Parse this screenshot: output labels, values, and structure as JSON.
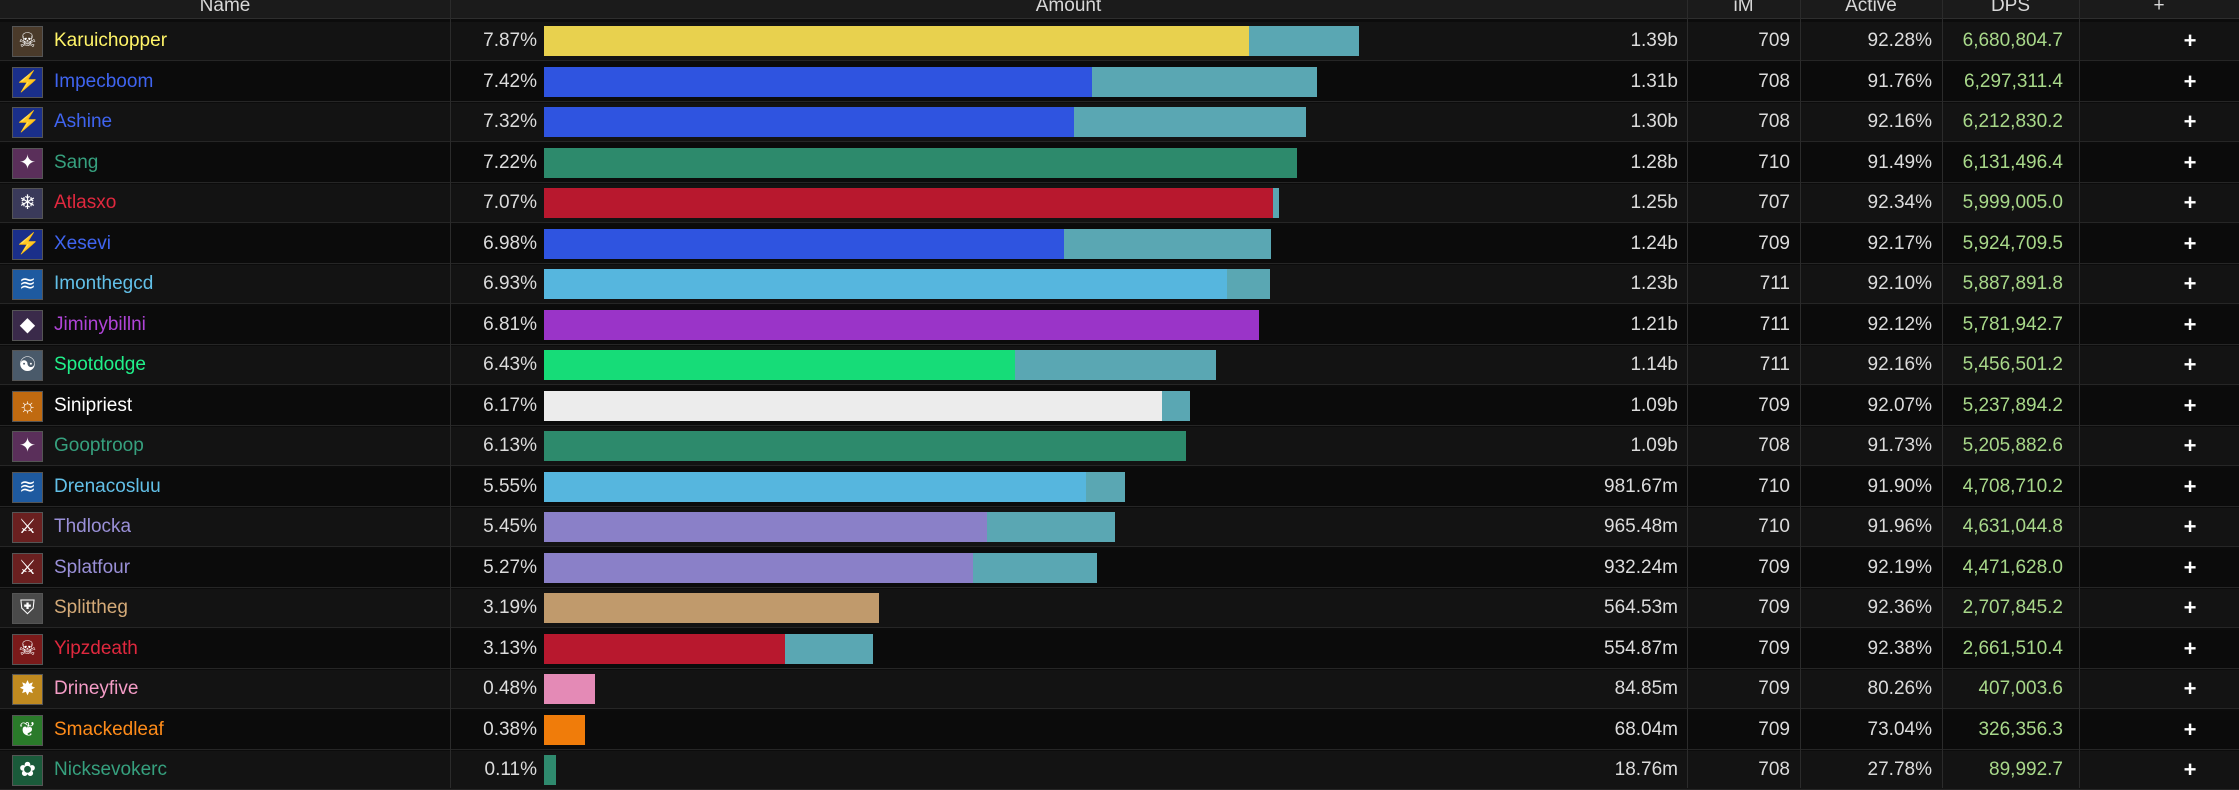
{
  "headers": {
    "name": "Name",
    "amount": "Amount",
    "ilvl": "iM",
    "active": "Active",
    "dps": "DPS",
    "plus": "+"
  },
  "colors": {
    "rogue": "#fff468",
    "mage": "#3f5fe8",
    "demonhunter": "#2f8a6e",
    "deathknight": "#c41e3a",
    "shaman": "#5ab4e0",
    "evoker_aug": "#9f3fd0",
    "monk": "#19e07a",
    "priest": "#f0f0f0",
    "warlock": "#8b7fc8",
    "warrior": "#c69b6d",
    "paladin": "#f48cba",
    "druid": "#ff7c0a",
    "evoker": "#33937f",
    "overflow": "#5aa7b3",
    "dps_text": "#a8d88a"
  },
  "rows": [
    {
      "name": "Karuichopper",
      "pct": "7.87%",
      "amount": "1.39b",
      "ilvl": "709",
      "active": "92.28%",
      "dps": "6,680,804.7",
      "plus": "+",
      "color": "#e8d14e",
      "text_color": "#fff468",
      "main": 0.705,
      "extra": 0.11,
      "icon": "rogue-icon",
      "icon_bg": "#4a3a2a",
      "glyph": "☠"
    },
    {
      "name": "Impecboom",
      "pct": "7.42%",
      "amount": "1.31b",
      "ilvl": "708",
      "active": "91.76%",
      "dps": "6,297,311.4",
      "plus": "+",
      "color": "#2f54e0",
      "text_color": "#3f64f0",
      "main": 0.548,
      "extra": 0.225,
      "icon": "mage-icon",
      "icon_bg": "#1a2f8a",
      "glyph": "⚡"
    },
    {
      "name": "Ashine",
      "pct": "7.32%",
      "amount": "1.30b",
      "ilvl": "708",
      "active": "92.16%",
      "dps": "6,212,830.2",
      "plus": "+",
      "color": "#2f54e0",
      "text_color": "#3f64f0",
      "main": 0.53,
      "extra": 0.232,
      "icon": "mage-icon",
      "icon_bg": "#1a2f8a",
      "glyph": "⚡"
    },
    {
      "name": "Sang",
      "pct": "7.22%",
      "amount": "1.28b",
      "ilvl": "710",
      "active": "91.49%",
      "dps": "6,131,496.4",
      "plus": "+",
      "color": "#2d8a6c",
      "text_color": "#36a07e",
      "main": 0.753,
      "extra": 0.0,
      "icon": "demon-hunter-icon",
      "icon_bg": "#5a2f5a",
      "glyph": "✦"
    },
    {
      "name": "Atlasxo",
      "pct": "7.07%",
      "amount": "1.25b",
      "ilvl": "707",
      "active": "92.34%",
      "dps": "5,999,005.0",
      "plus": "+",
      "color": "#b8182e",
      "text_color": "#e0283e",
      "main": 0.729,
      "extra": 0.006,
      "icon": "death-knight-icon",
      "icon_bg": "#3a3a5a",
      "glyph": "❄"
    },
    {
      "name": "Xesevi",
      "pct": "6.98%",
      "amount": "1.24b",
      "ilvl": "709",
      "active": "92.17%",
      "dps": "5,924,709.5",
      "plus": "+",
      "color": "#2f54e0",
      "text_color": "#3f64f0",
      "main": 0.52,
      "extra": 0.207,
      "icon": "mage-icon",
      "icon_bg": "#1a2f8a",
      "glyph": "⚡"
    },
    {
      "name": "Imonthegcd",
      "pct": "6.93%",
      "amount": "1.23b",
      "ilvl": "711",
      "active": "92.10%",
      "dps": "5,887,891.8",
      "plus": "+",
      "color": "#56b6de",
      "text_color": "#62c0e8",
      "main": 0.683,
      "extra": 0.043,
      "icon": "shaman-icon",
      "icon_bg": "#1e5aa0",
      "glyph": "≋"
    },
    {
      "name": "Jiminybillni",
      "pct": "6.81%",
      "amount": "1.21b",
      "ilvl": "711",
      "active": "92.12%",
      "dps": "5,781,942.7",
      "plus": "+",
      "color": "#9a34c8",
      "text_color": "#b044d8",
      "main": 0.715,
      "extra": 0.0,
      "icon": "evoker-icon",
      "icon_bg": "#3a2a4a",
      "glyph": "◆"
    },
    {
      "name": "Spotdodge",
      "pct": "6.43%",
      "amount": "1.14b",
      "ilvl": "711",
      "active": "92.16%",
      "dps": "5,456,501.2",
      "plus": "+",
      "color": "#16dc78",
      "text_color": "#20f08a",
      "main": 0.471,
      "extra": 0.201,
      "icon": "monk-icon",
      "icon_bg": "#4a5a6a",
      "glyph": "☯"
    },
    {
      "name": "Sinipriest",
      "pct": "6.17%",
      "amount": "1.09b",
      "ilvl": "709",
      "active": "92.07%",
      "dps": "5,237,894.2",
      "plus": "+",
      "color": "#ececec",
      "text_color": "#ffffff",
      "main": 0.618,
      "extra": 0.028,
      "icon": "priest-icon",
      "icon_bg": "#c06a10",
      "glyph": "☼"
    },
    {
      "name": "Gooptroop",
      "pct": "6.13%",
      "amount": "1.09b",
      "ilvl": "708",
      "active": "91.73%",
      "dps": "5,205,882.6",
      "plus": "+",
      "color": "#2d8a6c",
      "text_color": "#36a07e",
      "main": 0.642,
      "extra": 0.0,
      "icon": "demon-hunter-icon",
      "icon_bg": "#5a2f5a",
      "glyph": "✦"
    },
    {
      "name": "Drenacosluu",
      "pct": "5.55%",
      "amount": "981.67m",
      "ilvl": "710",
      "active": "91.90%",
      "dps": "4,708,710.2",
      "plus": "+",
      "color": "#56b6de",
      "text_color": "#62c0e8",
      "main": 0.542,
      "extra": 0.039,
      "icon": "shaman-icon",
      "icon_bg": "#1e5aa0",
      "glyph": "≋"
    },
    {
      "name": "Thdlocka",
      "pct": "5.45%",
      "amount": "965.48m",
      "ilvl": "710",
      "active": "91.96%",
      "dps": "4,631,044.8",
      "plus": "+",
      "color": "#8a80c8",
      "text_color": "#9a90d8",
      "main": 0.443,
      "extra": 0.128,
      "icon": "warlock-icon",
      "icon_bg": "#6a2020",
      "glyph": "⚔"
    },
    {
      "name": "Splatfour",
      "pct": "5.27%",
      "amount": "932.24m",
      "ilvl": "709",
      "active": "92.19%",
      "dps": "4,471,628.0",
      "plus": "+",
      "color": "#8a80c8",
      "text_color": "#9a90d8",
      "main": 0.429,
      "extra": 0.124,
      "icon": "warlock-icon",
      "icon_bg": "#6a2020",
      "glyph": "⚔"
    },
    {
      "name": "Splittheg",
      "pct": "3.19%",
      "amount": "564.53m",
      "ilvl": "709",
      "active": "92.36%",
      "dps": "2,707,845.2",
      "plus": "+",
      "color": "#c09a6c",
      "text_color": "#d4aa78",
      "main": 0.335,
      "extra": 0.0,
      "icon": "warrior-icon",
      "icon_bg": "#4a4a4a",
      "glyph": "⛨"
    },
    {
      "name": "Yipzdeath",
      "pct": "3.13%",
      "amount": "554.87m",
      "ilvl": "709",
      "active": "92.38%",
      "dps": "2,661,510.4",
      "plus": "+",
      "color": "#b8182e",
      "text_color": "#e0283e",
      "main": 0.241,
      "extra": 0.088,
      "icon": "death-knight-icon",
      "icon_bg": "#7a1a1a",
      "glyph": "☠"
    },
    {
      "name": "Drineyfive",
      "pct": "0.48%",
      "amount": "84.85m",
      "ilvl": "709",
      "active": "80.26%",
      "dps": "407,003.6",
      "plus": "+",
      "color": "#e48ab6",
      "text_color": "#f49cc6",
      "main": 0.051,
      "extra": 0.0,
      "icon": "paladin-icon",
      "icon_bg": "#c08a20",
      "glyph": "✸"
    },
    {
      "name": "Smackedleaf",
      "pct": "0.38%",
      "amount": "68.04m",
      "ilvl": "709",
      "active": "73.04%",
      "dps": "326,356.3",
      "plus": "+",
      "color": "#f07c0a",
      "text_color": "#ff8c1a",
      "main": 0.041,
      "extra": 0.0,
      "icon": "druid-icon",
      "icon_bg": "#2a7a2a",
      "glyph": "❦"
    },
    {
      "name": "Nicksevokerc",
      "pct": "0.11%",
      "amount": "18.76m",
      "ilvl": "708",
      "active": "27.78%",
      "dps": "89,992.7",
      "plus": "+",
      "color": "#2f8a6e",
      "text_color": "#36a07e",
      "main": 0.012,
      "extra": 0.0,
      "icon": "evoker-icon",
      "icon_bg": "#1a5a3a",
      "glyph": "✿"
    }
  ]
}
